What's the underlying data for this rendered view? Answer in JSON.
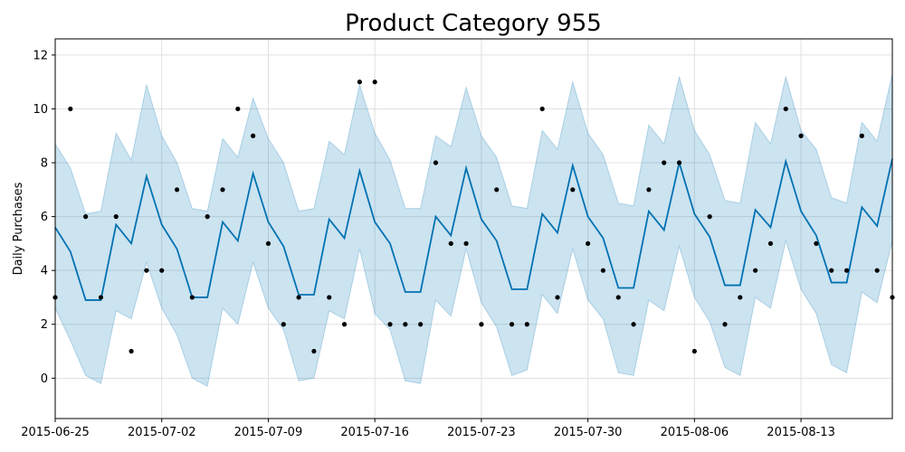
{
  "chart_data": {
    "type": "line",
    "title": "Product Category 955",
    "xlabel": "",
    "ylabel": "Daily Purchases",
    "x_start": "2015-06-25",
    "x_end": "2015-08-19",
    "xlim": [
      "2015-06-25",
      "2015-08-19"
    ],
    "ylim": [
      -1.5,
      12.6
    ],
    "grid": true,
    "x_ticks": [
      "2015-06-25",
      "2015-07-02",
      "2015-07-09",
      "2015-07-16",
      "2015-07-23",
      "2015-07-30",
      "2015-08-06",
      "2015-08-13"
    ],
    "y_ticks": [
      0,
      2,
      4,
      6,
      8,
      10,
      12
    ],
    "colors": {
      "forecast_line": "#0072B2",
      "interval_fill": "#0072B2",
      "points": "#000000",
      "grid": "#e0e0e0"
    },
    "series": [
      {
        "type": "line",
        "x": [
          "2015-06-25",
          "2015-06-26",
          "2015-06-27",
          "2015-06-28",
          "2015-06-29",
          "2015-06-30",
          "2015-07-01",
          "2015-07-02",
          "2015-07-03",
          "2015-07-04",
          "2015-07-05",
          "2015-07-06",
          "2015-07-07",
          "2015-07-08",
          "2015-07-09",
          "2015-07-10",
          "2015-07-11",
          "2015-07-12",
          "2015-07-13",
          "2015-07-14",
          "2015-07-15",
          "2015-07-16",
          "2015-07-17",
          "2015-07-18",
          "2015-07-19",
          "2015-07-20",
          "2015-07-21",
          "2015-07-22",
          "2015-07-23",
          "2015-07-24",
          "2015-07-25",
          "2015-07-26",
          "2015-07-27",
          "2015-07-28",
          "2015-07-29",
          "2015-07-30",
          "2015-07-31",
          "2015-08-01",
          "2015-08-02",
          "2015-08-03",
          "2015-08-04",
          "2015-08-05",
          "2015-08-06",
          "2015-08-07",
          "2015-08-08",
          "2015-08-09",
          "2015-08-10",
          "2015-08-11",
          "2015-08-12",
          "2015-08-13",
          "2015-08-14",
          "2015-08-15",
          "2015-08-16",
          "2015-08-17",
          "2015-08-18",
          "2015-08-19"
        ],
        "y": [
          5.6,
          4.7,
          2.9,
          2.9,
          5.7,
          5.0,
          7.5,
          5.7,
          4.8,
          3.0,
          3.0,
          5.8,
          5.1,
          7.6,
          5.8,
          4.9,
          3.1,
          3.1,
          5.9,
          5.2,
          7.7,
          5.8,
          5.0,
          3.2,
          3.2,
          6.0,
          5.3,
          7.8,
          5.9,
          5.1,
          3.3,
          3.3,
          6.1,
          5.4,
          7.9,
          6.0,
          5.2,
          3.35,
          3.35,
          6.2,
          5.5,
          8.0,
          6.1,
          5.25,
          3.45,
          3.45,
          6.25,
          5.6,
          8.05,
          6.2,
          5.3,
          3.55,
          3.55,
          6.35,
          5.65,
          8.15
        ],
        "lower": [
          2.6,
          1.4,
          0.1,
          -0.2,
          2.5,
          2.2,
          4.3,
          2.6,
          1.6,
          0.0,
          -0.3,
          2.6,
          2.0,
          4.3,
          2.6,
          1.8,
          -0.1,
          0.0,
          2.5,
          2.2,
          4.8,
          2.4,
          1.8,
          -0.1,
          -0.2,
          2.9,
          2.3,
          4.8,
          2.8,
          1.9,
          0.1,
          0.3,
          3.1,
          2.4,
          4.8,
          2.9,
          2.2,
          0.2,
          0.1,
          2.9,
          2.5,
          4.9,
          3.0,
          2.1,
          0.4,
          0.1,
          3.0,
          2.6,
          5.1,
          3.3,
          2.4,
          0.5,
          0.2,
          3.2,
          2.8,
          5.1
        ],
        "upper": [
          8.7,
          7.8,
          6.1,
          6.2,
          9.1,
          8.1,
          10.9,
          9.0,
          8.0,
          6.3,
          6.2,
          8.9,
          8.2,
          10.4,
          8.9,
          8.0,
          6.2,
          6.3,
          8.8,
          8.3,
          10.9,
          9.1,
          8.1,
          6.3,
          6.3,
          9.0,
          8.6,
          10.8,
          9.0,
          8.2,
          6.4,
          6.3,
          9.2,
          8.5,
          11.0,
          9.1,
          8.3,
          6.5,
          6.4,
          9.4,
          8.7,
          11.2,
          9.2,
          8.3,
          6.6,
          6.5,
          9.5,
          8.7,
          11.2,
          9.2,
          8.5,
          6.7,
          6.5,
          9.5,
          8.8,
          11.3
        ]
      },
      {
        "type": "scatter",
        "x": [
          "2015-06-25",
          "2015-06-26",
          "2015-06-27",
          "2015-06-28",
          "2015-06-29",
          "2015-06-30",
          "2015-07-01",
          "2015-07-02",
          "2015-07-03",
          "2015-07-04",
          "2015-07-05",
          "2015-07-06",
          "2015-07-07",
          "2015-07-08",
          "2015-07-09",
          "2015-07-10",
          "2015-07-11",
          "2015-07-12",
          "2015-07-13",
          "2015-07-14",
          "2015-07-15",
          "2015-07-16",
          "2015-07-17",
          "2015-07-18",
          "2015-07-19",
          "2015-07-20",
          "2015-07-21",
          "2015-07-22",
          "2015-07-23",
          "2015-07-24",
          "2015-07-25",
          "2015-07-26",
          "2015-07-27",
          "2015-07-28",
          "2015-07-29",
          "2015-07-30",
          "2015-07-31",
          "2015-08-01",
          "2015-08-02",
          "2015-08-03",
          "2015-08-04",
          "2015-08-05",
          "2015-08-06",
          "2015-08-07",
          "2015-08-08",
          "2015-08-09",
          "2015-08-10",
          "2015-08-11",
          "2015-08-12",
          "2015-08-13",
          "2015-08-14",
          "2015-08-15",
          "2015-08-16",
          "2015-08-17",
          "2015-08-18",
          "2015-08-19"
        ],
        "y": [
          3,
          10,
          6,
          3,
          6,
          1,
          4,
          4,
          7,
          3,
          6,
          7,
          10,
          9,
          5,
          2,
          3,
          1,
          3,
          2,
          11,
          11,
          2,
          2,
          2,
          8,
          5,
          5,
          2,
          7,
          2,
          2,
          10,
          3,
          7,
          5,
          4,
          3,
          2,
          7,
          8,
          8,
          1,
          6,
          2,
          3,
          4,
          5,
          10,
          9,
          5,
          4,
          4,
          9,
          4,
          3
        ]
      }
    ]
  }
}
